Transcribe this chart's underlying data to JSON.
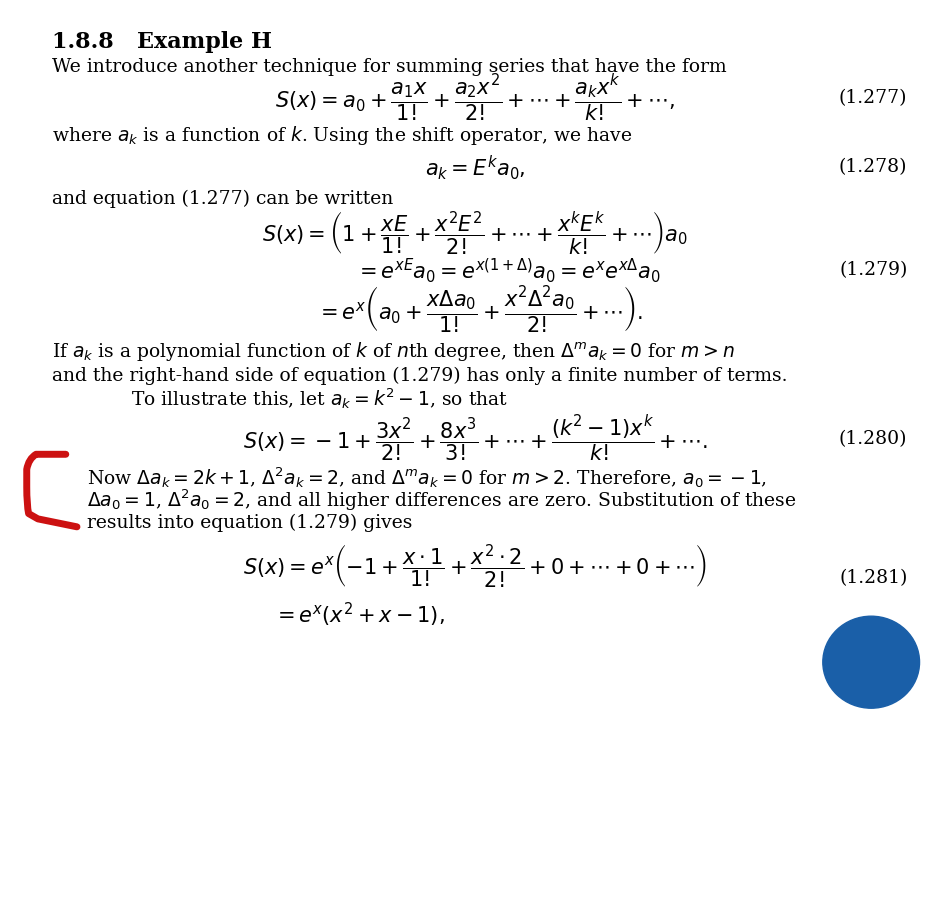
{
  "bg_color": "#ffffff",
  "text_color": "#000000",
  "fig_width": 12.0,
  "fig_height": 11.49,
  "section_title": "1.8.8   Example H",
  "intro_text": "We introduce another technique for summing series that have the form",
  "eq1277": "$S(x) = a_0 + \\dfrac{a_1 x}{1!} + \\dfrac{a_2 x^2}{2!} + \\cdots + \\dfrac{a_k x^k}{k!} + \\cdots,$",
  "text_where": "where $a_k$ is a function of $k$. Using the shift operator, we have",
  "eq1278": "$a_k = E^k a_0,$",
  "text_and_eq": "and equation (1.277) can be written",
  "eq1279a": "$S(x) = \\left(1 + \\dfrac{xE}{1!} + \\dfrac{x^2 E^2}{2!} + \\cdots + \\dfrac{x^k E^k}{k!} + \\cdots\\right) a_0$",
  "eq1279b": "$= e^{xE} a_0 = e^{x(1+\\Delta)} a_0 = e^x e^{x\\Delta} a_0$",
  "eq1279c": "$= e^x \\left(a_0 + \\dfrac{x\\Delta a_0}{1!} + \\dfrac{x^2 \\Delta^2 a_0}{2!} + \\cdots\\right).$",
  "text_poly1": "If $a_k$ is a polynomial function of $k$ of $n$th degree, then $\\Delta^m a_k = 0$ for $m > n$",
  "text_poly2": "and the right-hand side of equation (1.279) has only a finite number of terms.",
  "text_poly3": "To illustrate this, let $a_k = k^2 - 1$, so that",
  "eq1280": "$S(x) = -1 + \\dfrac{3x^2}{2!} + \\dfrac{8x^3}{3!} + \\cdots + \\dfrac{(k^2-1)x^k}{k!} + \\cdots.$",
  "text_now1": "Now $\\Delta a_k = 2k+1$, $\\Delta^2 a_k = 2$, and $\\Delta^m a_k = 0$ for $m > 2$. Therefore, $a_0 = -1$,",
  "text_now2": "$\\Delta a_0 = 1$, $\\Delta^2 a_0 = 2$, and all higher differences are zero. Substitution of these",
  "text_now3": "results into equation (1.279) gives",
  "eq1281a": "$S(x) = e^x\\left(-1 + \\dfrac{x \\cdot 1}{1!} + \\dfrac{x^2 \\cdot 2}{2!} + 0 + \\cdots + 0 + \\cdots\\right)$",
  "eq1281b": "$= e^x(x^2 + x - 1),$",
  "enum1277": "(1.277)",
  "enum1278": "(1.278)",
  "enum1279": "(1.279)",
  "enum1280": "(1.280)",
  "enum1281": "(1.281)",
  "red_color": "#cc1111",
  "blue_color": "#1a5fa8"
}
